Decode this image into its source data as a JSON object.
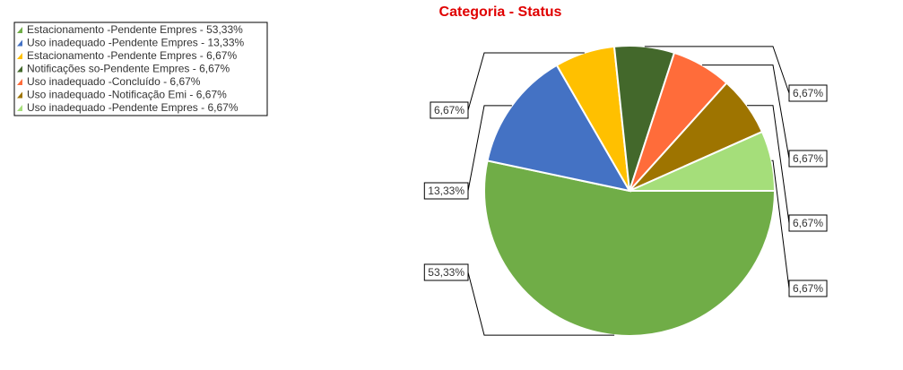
{
  "chart_data": {
    "type": "pie",
    "title": "Categoria - Status",
    "categories": [
      "Estacionamento -Pendente Empres - 53,33%",
      "Uso inadequado -Pendente Empres - 13,33%",
      "Estacionamento -Pendente Empres - 6,67%",
      "Notificações so-Pendente Empres - 6,67%",
      "Uso inadequado -Concluído - 6,67%",
      "Uso inadequado -Notificação Emi - 6,67%",
      "Uso inadequado -Pendente Empres - 6,67%"
    ],
    "values": [
      53.33,
      13.33,
      6.67,
      6.67,
      6.67,
      6.67,
      6.67
    ],
    "value_labels": [
      "53,33%",
      "13,33%",
      "6,67%",
      "6,67%",
      "6,67%",
      "6,67%",
      "6,67%"
    ],
    "colors": [
      "#70ad47",
      "#4472c4",
      "#ffc000",
      "#43682b",
      "#ff6c3a",
      "#9e7400",
      "#a5de7a"
    ],
    "legend": "top-left"
  }
}
